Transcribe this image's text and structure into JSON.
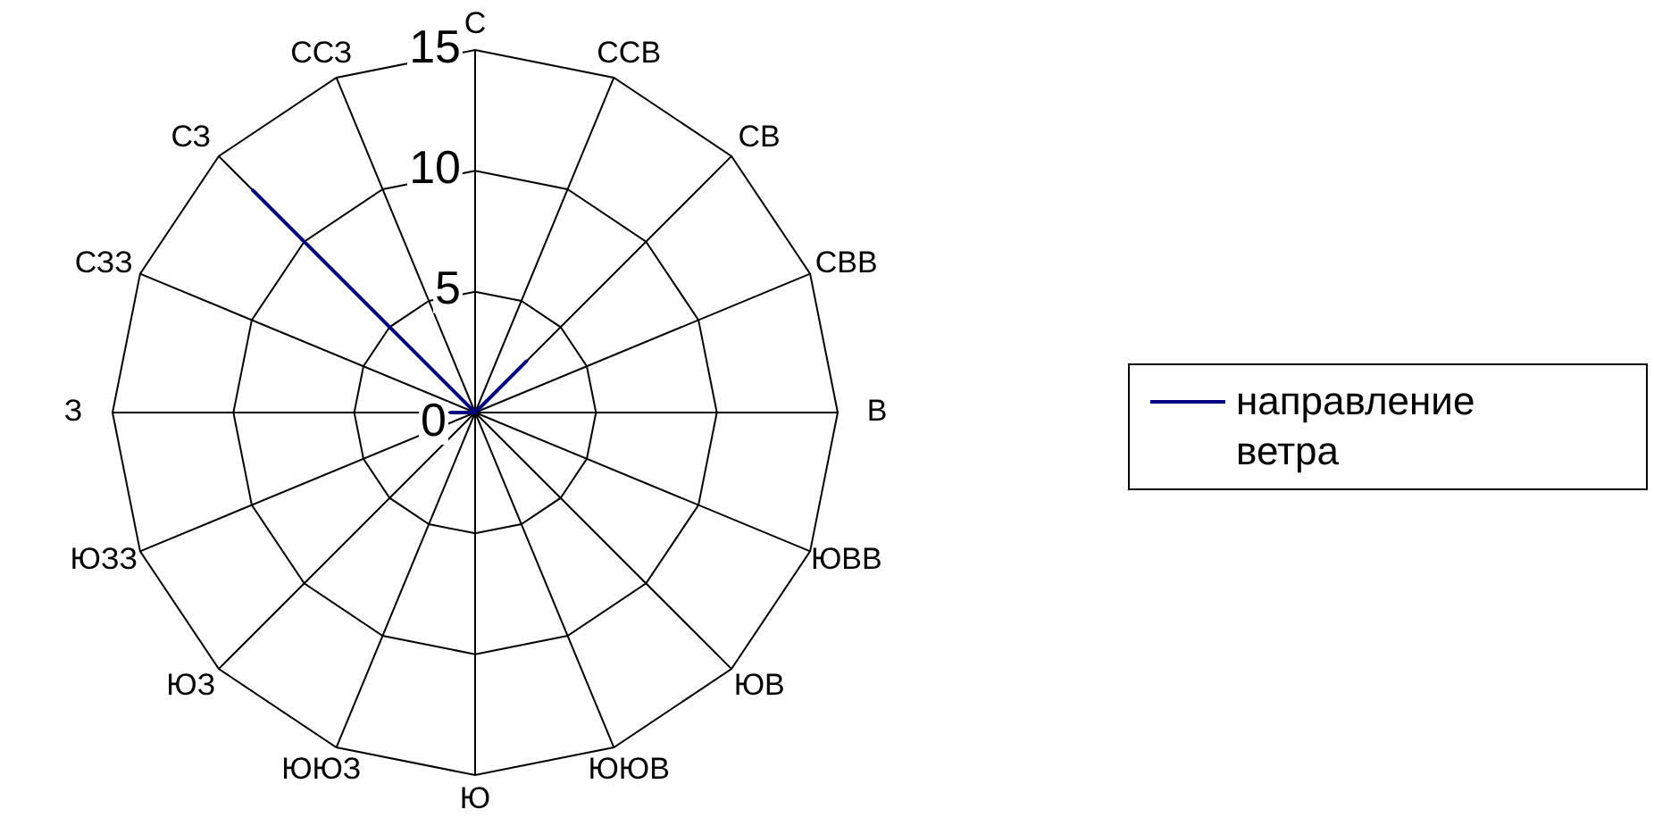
{
  "chart_data": {
    "type": "radar",
    "categories": [
      "С",
      "ССВ",
      "СВ",
      "СВВ",
      "В",
      "ЮВВ",
      "ЮВ",
      "ЮЮВ",
      "Ю",
      "ЮЮЗ",
      "ЮЗ",
      "ЮЗЗ",
      "З",
      "СЗЗ",
      "СЗ",
      "ССЗ"
    ],
    "series": [
      {
        "name": "направление ветра",
        "color": "#000080",
        "values": [
          0,
          0,
          3,
          0,
          0,
          0,
          0,
          0,
          0,
          0,
          0,
          0,
          1,
          0,
          13,
          0
        ]
      }
    ],
    "ylim": [
      0,
      15
    ],
    "yticks": [
      0,
      5,
      10,
      15
    ],
    "grid": true,
    "legend": "right"
  }
}
